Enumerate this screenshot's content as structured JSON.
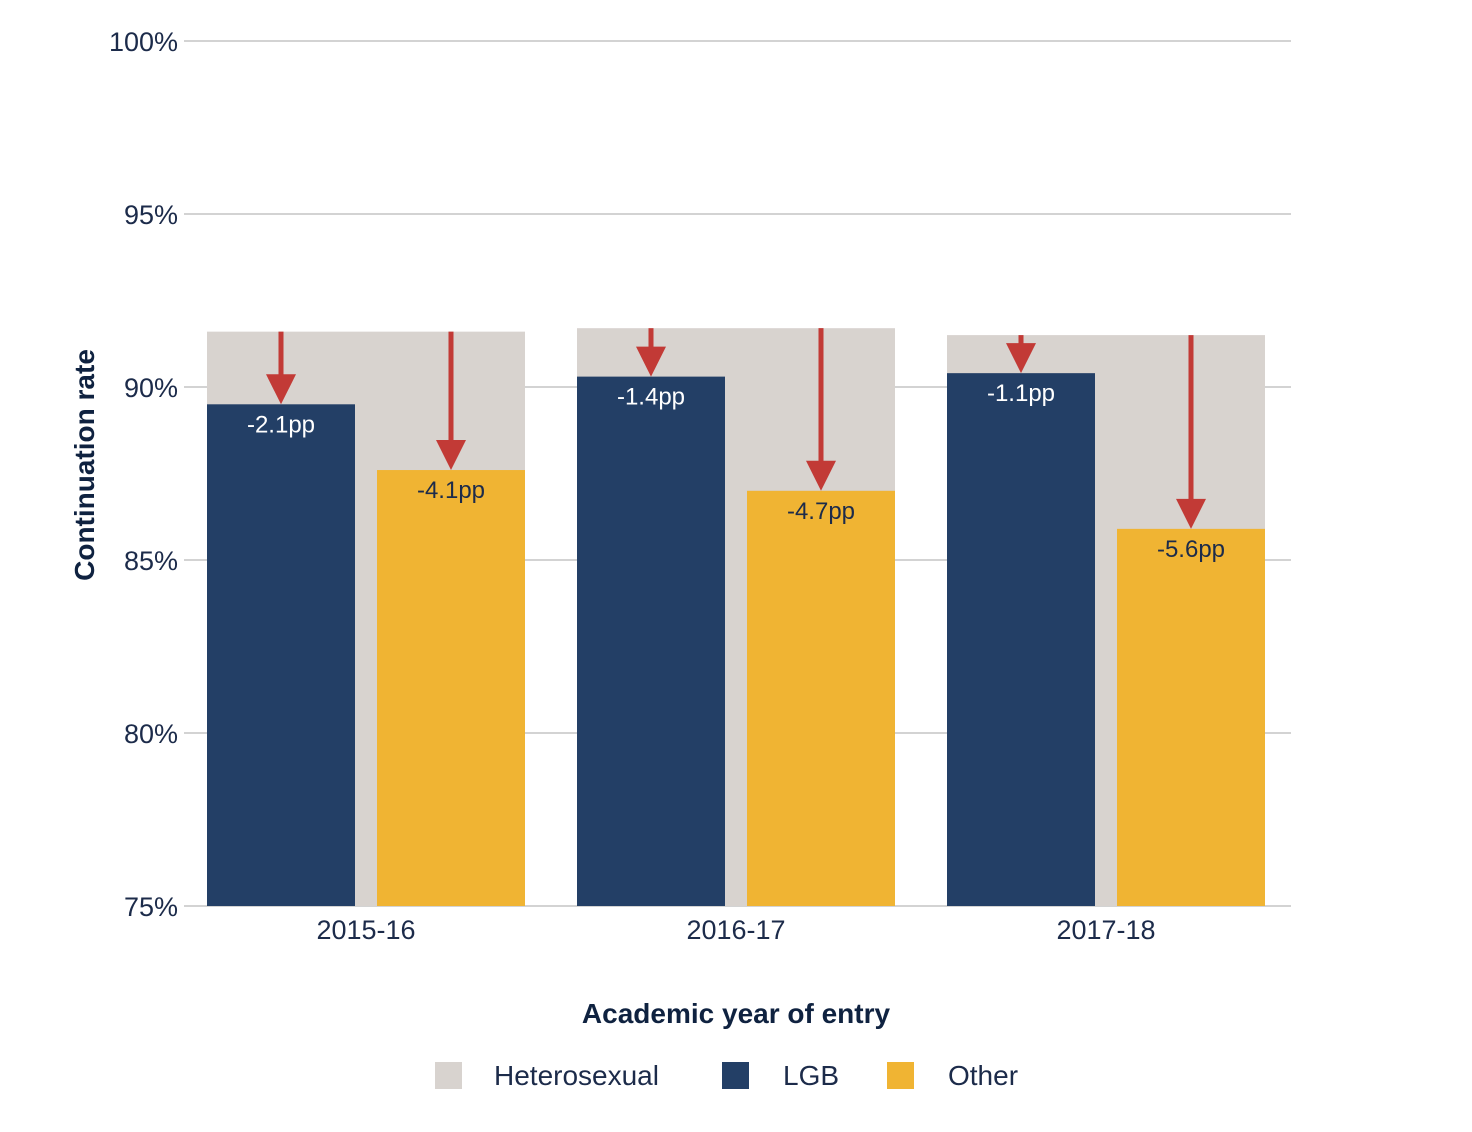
{
  "chart_data": {
    "type": "bar",
    "title": "",
    "xlabel": "Academic year of entry",
    "ylabel": "Continuation rate",
    "ylim": [
      75,
      100
    ],
    "y_ticks": [
      75,
      80,
      85,
      90,
      95,
      100
    ],
    "y_tick_labels": [
      "75%",
      "80%",
      "85%",
      "90%",
      "95%",
      "100%"
    ],
    "grid": true,
    "categories": [
      "2015-16",
      "2016-17",
      "2017-18"
    ],
    "series": [
      {
        "name": "Heterosexual",
        "values": [
          91.6,
          91.7,
          91.5
        ]
      },
      {
        "name": "LGB",
        "values": [
          89.5,
          90.3,
          90.4
        ]
      },
      {
        "name": "Other",
        "values": [
          87.6,
          87.0,
          85.9
        ]
      }
    ],
    "gap_labels": [
      {
        "category": "2015-16",
        "LGB": "-2.1pp",
        "Other": "-4.1pp"
      },
      {
        "category": "2016-17",
        "LGB": "-1.4pp",
        "Other": "-4.7pp"
      },
      {
        "category": "2017-18",
        "LGB": "-1.1pp",
        "Other": "-5.6pp"
      }
    ],
    "legend": {
      "position": "bottom",
      "entries": [
        "Heterosexual",
        "LGB",
        "Other"
      ]
    }
  },
  "colors": {
    "heterosexual": "#d8d3cf",
    "lgb": "#233f66",
    "other": "#f0b433",
    "arrow": "#c23a36",
    "grid": "#d3d3d3",
    "text": "#1c2b4a",
    "label_on_dark": "#ffffff",
    "label_on_light": "#1c2b4a"
  }
}
